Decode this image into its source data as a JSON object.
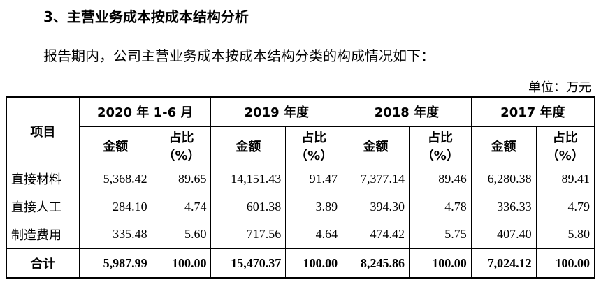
{
  "heading": "3、主营业务成本按成本结构分析",
  "intro": "报告期内，公司主营业务成本按成本结构分类的构成情况如下：",
  "unit": "单位：万元",
  "table": {
    "item_header": "项目",
    "periods": [
      {
        "label": "2020 年 1-6 月",
        "amount_label": "金额",
        "share_label": [
          "占比",
          "（%）"
        ]
      },
      {
        "label": "2019 年度",
        "amount_label": "金额",
        "share_label": [
          "占比",
          "（%）"
        ]
      },
      {
        "label": "2018 年度",
        "amount_label": "金额",
        "share_label": [
          "占比",
          "（%）"
        ]
      },
      {
        "label": "2017 年度",
        "amount_label": "金额",
        "share_label": [
          "占比",
          "（%）"
        ]
      }
    ],
    "rows": [
      [
        "直接材料",
        "5,368.42",
        "89.65",
        "14,151.43",
        "91.47",
        "7,377.14",
        "89.46",
        "6,280.38",
        "89.41"
      ],
      [
        "直接人工",
        "284.10",
        "4.74",
        "601.38",
        "3.89",
        "394.30",
        "4.78",
        "336.33",
        "4.79"
      ],
      [
        "制造费用",
        "335.48",
        "5.60",
        "717.56",
        "4.64",
        "474.42",
        "5.75",
        "407.40",
        "5.80"
      ],
      [
        "合计",
        "5,987.99",
        "100.00",
        "15,470.37",
        "100.00",
        "8,245.86",
        "100.00",
        "7,024.12",
        "100.00"
      ]
    ]
  }
}
